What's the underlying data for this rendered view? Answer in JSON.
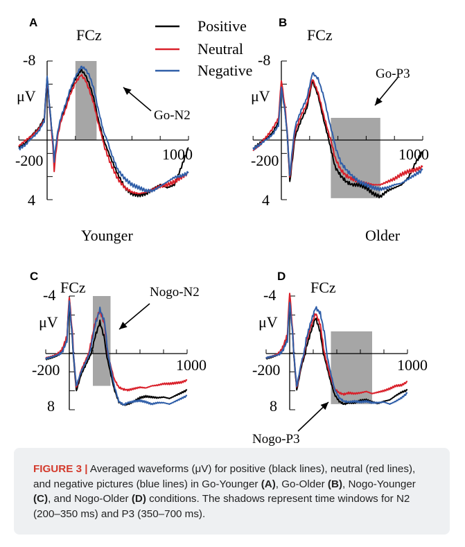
{
  "colors": {
    "positive": "#000000",
    "neutral": "#d9202a",
    "negative": "#2f5ea8",
    "shade": "#a6a6a6"
  },
  "legend": [
    {
      "label": "Positive",
      "color": "#000000"
    },
    {
      "label": "Neutral",
      "color": "#d9202a"
    },
    {
      "label": "Negative",
      "color": "#2f5ea8"
    }
  ],
  "group_labels": {
    "younger": "Younger",
    "older": "Older"
  },
  "chart_data": [
    {
      "type": "line",
      "panel": "A",
      "electrode": "FCz",
      "ylabel": "μV",
      "ytick_top": "-8",
      "ytick_bottom": "4",
      "xtick_left": "-200",
      "xtick_right": "1000",
      "xlim": [
        -200,
        1000
      ],
      "ylim": [
        -8,
        4
      ],
      "shade": {
        "x": [
          200,
          350
        ],
        "label": "Go-N2"
      },
      "x": [
        -200,
        -150,
        -100,
        -60,
        -20,
        0,
        20,
        50,
        80,
        100,
        130,
        160,
        200,
        240,
        270,
        300,
        330,
        360,
        400,
        450,
        500,
        550,
        600,
        650,
        700,
        750,
        800,
        850,
        900,
        950,
        1000
      ],
      "series": [
        {
          "name": "Positive",
          "values": [
            0.5,
            0.2,
            -0.6,
            -1.2,
            -2.2,
            -6.4,
            -3.0,
            1.5,
            -1.0,
            -2.2,
            -3.4,
            -4.8,
            -6.2,
            -7.1,
            -6.6,
            -5.6,
            -4.2,
            -2.2,
            0.0,
            1.2,
            2.3,
            3.2,
            3.6,
            3.7,
            3.6,
            3.3,
            3.0,
            3.2,
            3.0,
            1.8,
            0.5
          ]
        },
        {
          "name": "Neutral",
          "values": [
            0.4,
            0.0,
            -0.5,
            -1.1,
            -2.0,
            -6.2,
            -2.8,
            2.0,
            -0.8,
            -2.0,
            -3.1,
            -4.5,
            -5.8,
            -6.6,
            -6.1,
            -5.0,
            -3.7,
            -1.8,
            0.3,
            1.6,
            2.6,
            3.2,
            3.5,
            3.6,
            3.5,
            3.3,
            3.1,
            3.0,
            2.8,
            2.5,
            2.2
          ]
        },
        {
          "name": "Negative",
          "values": [
            0.6,
            0.3,
            -0.3,
            -0.9,
            -1.9,
            -6.5,
            -2.9,
            1.4,
            -1.2,
            -2.4,
            -3.6,
            -5.0,
            -6.4,
            -7.4,
            -7.2,
            -6.5,
            -5.2,
            -3.2,
            -0.8,
            0.8,
            2.0,
            2.6,
            3.0,
            3.2,
            3.4,
            3.4,
            3.1,
            2.8,
            2.5,
            2.4,
            2.2
          ]
        }
      ]
    },
    {
      "type": "line",
      "panel": "B",
      "electrode": "FCz",
      "ylabel": "μV",
      "ytick_top": "-8",
      "ytick_bottom": "4",
      "xtick_left": "-200",
      "xtick_right": "1000",
      "xlim": [
        -200,
        1000
      ],
      "ylim": [
        -8,
        4
      ],
      "shade": {
        "x": [
          350,
          700
        ],
        "label": "Go-P3"
      },
      "x": [
        -200,
        -150,
        -100,
        -60,
        -20,
        0,
        30,
        60,
        100,
        140,
        180,
        220,
        260,
        300,
        340,
        380,
        420,
        460,
        500,
        550,
        600,
        650,
        700,
        750,
        800,
        850,
        900,
        950,
        1000
      ],
      "series": [
        {
          "name": "Positive",
          "values": [
            0.6,
            0.2,
            -0.2,
            -0.8,
            -1.8,
            -5.8,
            -2.5,
            2.8,
            -0.5,
            -2.0,
            -3.2,
            -6.0,
            -4.5,
            -2.0,
            0.2,
            1.8,
            2.4,
            2.8,
            3.0,
            3.0,
            3.2,
            3.6,
            3.8,
            3.4,
            3.2,
            3.0,
            2.5,
            1.5,
            0.8
          ]
        },
        {
          "name": "Neutral",
          "values": [
            0.7,
            0.3,
            -0.4,
            -1.2,
            -2.2,
            -6.1,
            -2.8,
            2.6,
            -1.0,
            -2.5,
            -3.6,
            -6.2,
            -4.8,
            -2.5,
            -0.4,
            1.2,
            2.0,
            2.4,
            2.6,
            2.8,
            2.9,
            3.0,
            3.0,
            2.8,
            2.6,
            2.3,
            2.1,
            2.0,
            1.8
          ]
        },
        {
          "name": "Negative",
          "values": [
            0.6,
            0.3,
            -0.1,
            -0.6,
            -1.5,
            -5.4,
            -2.4,
            2.4,
            -1.5,
            -3.0,
            -4.2,
            -6.8,
            -6.2,
            -4.4,
            -1.8,
            0.4,
            1.5,
            2.0,
            2.4,
            2.8,
            3.0,
            3.2,
            3.3,
            3.2,
            3.0,
            2.9,
            2.6,
            2.3,
            2.0
          ]
        }
      ]
    },
    {
      "type": "line",
      "panel": "C",
      "electrode": "FCz",
      "ylabel": "μV",
      "ytick_top": "-4",
      "ytick_bottom": "8",
      "xtick_left": "-200",
      "xtick_right": "1000",
      "xlim": [
        -200,
        1000
      ],
      "ylim": [
        -4,
        8
      ],
      "shade": {
        "x": [
          200,
          350
        ],
        "label": "Nogo-N2"
      },
      "x": [
        -200,
        -150,
        -100,
        -60,
        -20,
        0,
        30,
        60,
        100,
        140,
        180,
        220,
        260,
        300,
        340,
        380,
        420,
        460,
        500,
        550,
        600,
        650,
        700,
        750,
        800,
        850,
        900,
        950,
        1000
      ],
      "series": [
        {
          "name": "Positive",
          "values": [
            0.8,
            0.6,
            0.3,
            -0.2,
            -1.0,
            -3.9,
            -0.5,
            5.3,
            3.0,
            1.6,
            0.2,
            -1.2,
            -2.2,
            -1.0,
            2.0,
            5.0,
            6.9,
            7.3,
            7.2,
            6.8,
            6.3,
            6.1,
            6.2,
            6.3,
            6.2,
            6.4,
            6.0,
            5.6,
            5.2
          ]
        },
        {
          "name": "Neutral",
          "values": [
            0.6,
            0.4,
            0.1,
            -0.3,
            -1.2,
            -4.0,
            -1.0,
            4.9,
            2.4,
            0.9,
            -0.6,
            -2.2,
            -3.0,
            -2.0,
            1.0,
            3.6,
            4.8,
            5.1,
            5.2,
            5.0,
            4.8,
            4.9,
            4.6,
            4.5,
            4.3,
            4.3,
            4.2,
            4.1,
            3.8
          ]
        },
        {
          "name": "Negative",
          "values": [
            0.7,
            0.5,
            0.2,
            -0.1,
            -0.9,
            -3.7,
            -0.7,
            4.6,
            2.6,
            1.2,
            -0.3,
            -2.0,
            -3.1,
            -2.2,
            1.0,
            4.5,
            6.8,
            7.3,
            7.0,
            6.8,
            6.7,
            6.9,
            7.2,
            7.0,
            7.0,
            7.2,
            6.8,
            6.4,
            6.0
          ]
        }
      ]
    },
    {
      "type": "line",
      "panel": "D",
      "electrode": "FCz",
      "ylabel": "μV",
      "ytick_top": "-4",
      "ytick_bottom": "8",
      "xtick_left": "-200",
      "xtick_right": "1000",
      "xlim": [
        -200,
        1000
      ],
      "ylim": [
        -4,
        8
      ],
      "shade": {
        "x": [
          350,
          700
        ],
        "label": "Nogo-P3"
      },
      "x": [
        -200,
        -150,
        -100,
        -60,
        -20,
        0,
        30,
        60,
        100,
        140,
        180,
        220,
        260,
        300,
        340,
        380,
        420,
        460,
        500,
        550,
        600,
        650,
        700,
        750,
        800,
        850,
        900,
        950,
        1000
      ],
      "series": [
        {
          "name": "Positive",
          "values": [
            0.7,
            0.5,
            0.2,
            -0.2,
            -1.0,
            -4.0,
            -0.8,
            5.2,
            1.8,
            -0.4,
            -1.5,
            -2.5,
            -1.5,
            0.8,
            3.5,
            5.8,
            6.8,
            7.2,
            7.0,
            7.0,
            6.7,
            6.6,
            6.9,
            7.1,
            6.8,
            6.6,
            6.0,
            5.5,
            5.2
          ]
        },
        {
          "name": "Neutral",
          "values": [
            0.6,
            0.4,
            0.1,
            -0.4,
            -1.3,
            -4.3,
            -1.0,
            4.9,
            1.4,
            -0.8,
            -1.9,
            -2.8,
            -2.0,
            0.3,
            3.0,
            5.0,
            5.6,
            5.8,
            5.6,
            5.7,
            5.6,
            5.4,
            5.7,
            5.5,
            5.3,
            5.0,
            4.6,
            4.5,
            4.0
          ]
        },
        {
          "name": "Negative",
          "values": [
            0.6,
            0.4,
            0.2,
            -0.2,
            -0.9,
            -3.6,
            -0.9,
            4.7,
            1.2,
            -1.0,
            -2.2,
            -3.2,
            -2.8,
            -1.2,
            2.2,
            5.0,
            6.3,
            6.8,
            6.9,
            6.8,
            6.9,
            6.8,
            7.0,
            7.0,
            6.9,
            7.2,
            6.8,
            6.3,
            5.6
          ]
        }
      ]
    }
  ],
  "caption": {
    "label": "FIGURE 3 |",
    "parts": [
      " Averaged waveforms (μV) for positive (black lines), neutral (red lines), and negative pictures (blue lines) in Go-Younger ",
      "(A)",
      ", Go-Older ",
      "(B)",
      ", Nogo-Younger ",
      "(C)",
      ", and Nogo-Older ",
      "(D)",
      " conditions. The shadows represent time windows for N2 (200–350 ms) and P3 (350–700 ms)."
    ]
  }
}
